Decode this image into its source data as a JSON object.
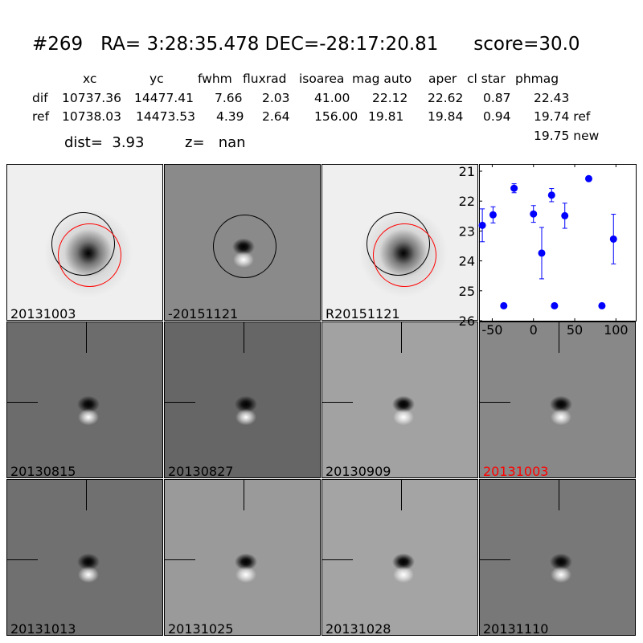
{
  "header": {
    "title": "#269   RA= 3:28:35.478 DEC=-28:17:20.81      score=30.0",
    "columns": [
      "xc",
      "yc",
      "fwhm",
      "fluxrad",
      "isoarea",
      "mag auto",
      "aper",
      "cl star",
      "phmag"
    ],
    "dif": [
      "dif",
      "10737.36",
      "14477.41",
      "7.66",
      "2.03",
      "41.00",
      "22.12",
      "22.62",
      "0.87",
      "22.43"
    ],
    "ref": [
      "ref",
      "10738.03",
      "14473.53",
      "4.39",
      "2.64",
      "156.00",
      "19.81",
      "19.84",
      "0.94",
      "19.74 ref"
    ],
    "new_phmag": "19.75 new",
    "dist": "dist=  3.93",
    "z": "z=   nan"
  },
  "panels": [
    {
      "label": "20131003",
      "bg": "#efefef",
      "label_color": "#000000"
    },
    {
      "label": "-20151121",
      "bg": "#8a8a8a",
      "label_color": "#000000"
    },
    {
      "label": "R20151121",
      "bg": "#efefef",
      "label_color": "#000000"
    },
    {
      "label": "20130815",
      "bg": "#6c6c6c",
      "label_color": "#000000"
    },
    {
      "label": "20130827",
      "bg": "#666666",
      "label_color": "#000000"
    },
    {
      "label": "20130909",
      "bg": "#a2a2a2",
      "label_color": "#000000"
    },
    {
      "label": "20131003",
      "bg": "#888888",
      "label_color": "#ff0000"
    },
    {
      "label": "20131013",
      "bg": "#707070",
      "label_color": "#000000"
    },
    {
      "label": "20131025",
      "bg": "#9a9a9a",
      "label_color": "#000000"
    },
    {
      "label": "20131028",
      "bg": "#a4a4a4",
      "label_color": "#000000"
    },
    {
      "label": "20131110",
      "bg": "#787878",
      "label_color": "#000000"
    }
  ],
  "chart_data": {
    "type": "scatter",
    "xlim": [
      -66,
      125
    ],
    "ylim": [
      26,
      21
    ],
    "y_inverted": true,
    "xticks": [
      "-50",
      "0",
      "50",
      "100"
    ],
    "yticks": [
      "21",
      "22",
      "23",
      "24",
      "25",
      "26"
    ],
    "color": "#0000ff",
    "x": [
      -62,
      -49,
      -36,
      -23.5,
      0,
      10,
      22,
      25.5,
      38,
      67,
      83,
      97
    ],
    "y": [
      22.81,
      22.46,
      25.5,
      21.57,
      22.43,
      23.74,
      21.8,
      25.5,
      22.49,
      21.25,
      25.5,
      23.27
    ],
    "yerr": [
      0.55,
      0.27,
      0.05,
      0.15,
      0.28,
      0.86,
      0.22,
      0.05,
      0.42,
      0.07,
      0.05,
      0.83
    ]
  }
}
